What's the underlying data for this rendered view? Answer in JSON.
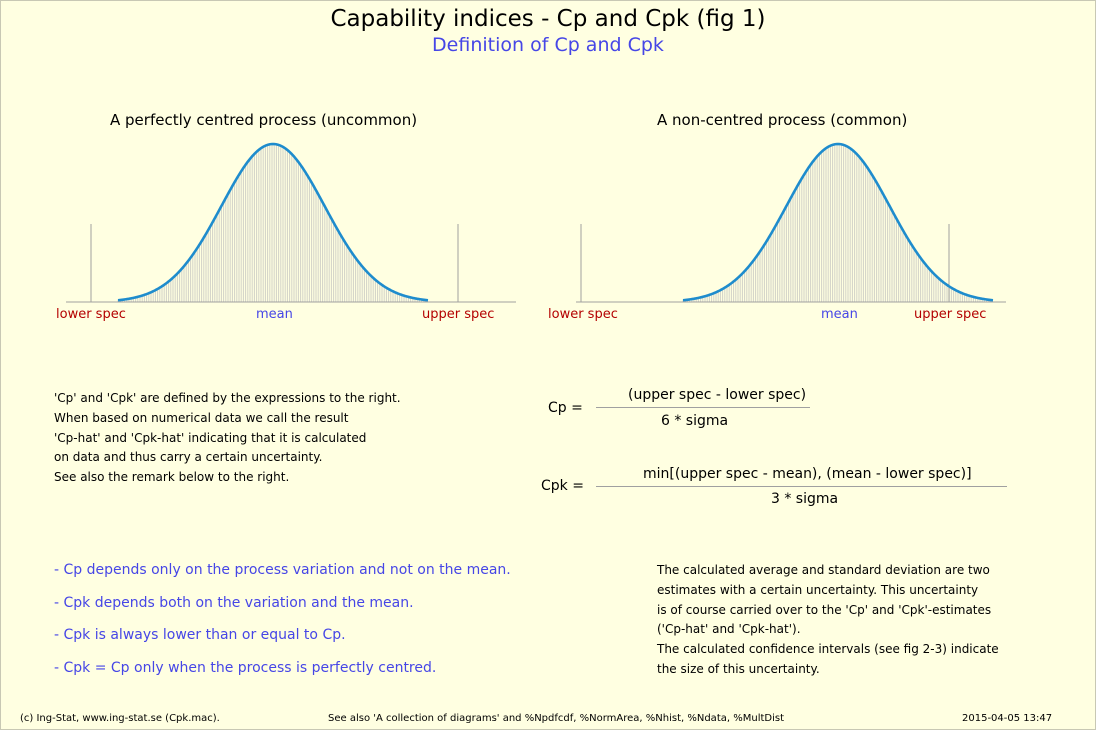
{
  "header": {
    "title": "Capability indices - Cp and Cpk (fig 1)",
    "subtitle": "Definition of Cp and Cpk"
  },
  "panels": [
    {
      "title": "A perfectly centred process (uncommon)",
      "labels": {
        "lower_spec": "lower spec",
        "mean": "mean",
        "upper_spec": "upper spec"
      }
    },
    {
      "title": "A non-centred process (common)",
      "labels": {
        "lower_spec": "lower spec",
        "mean": "mean",
        "upper_spec": "upper spec"
      }
    }
  ],
  "definition_text": [
    "'Cp' and 'Cpk' are defined by the expressions to the right.",
    "When based on numerical data we call the result",
    "'Cp-hat' and 'Cpk-hat' indicating that it is calculated",
    "on data and thus carry a certain uncertainty.",
    "See also the remark below to the right."
  ],
  "formulas": {
    "cp": {
      "lhs": "Cp =",
      "numerator": "(upper spec - lower spec)",
      "denominator": "6 * sigma"
    },
    "cpk": {
      "lhs": "Cpk =",
      "numerator": "min[(upper spec - mean), (mean - lower spec)]",
      "denominator": "3 * sigma"
    }
  },
  "bullets": [
    "- Cp depends only on the process variation and not on the mean.",
    "- Cpk depends both on the variation and the mean.",
    "- Cpk is always lower than or equal to Cp.",
    "- Cpk = Cp only when the process is perfectly centred."
  ],
  "remark_text": [
    "The calculated average and standard deviation are two",
    "estimates with a certain uncertainty. This uncertainty",
    "is of course carried over to the 'Cp' and 'Cpk'-estimates",
    "('Cp-hat' and 'Cpk-hat').",
    "The calculated confidence intervals (see fig 2-3) indicate",
    "the size of this uncertainty."
  ],
  "footer": {
    "left": "(c) Ing-Stat, www.ing-stat.se (Cpk.mac).",
    "center": "See also 'A collection of diagrams' and %Npdfcdf, %NormArea, %Nhist, %Ndata, %MultDist",
    "right": "2015-04-05 13:47"
  },
  "colors": {
    "background": "#ffffe1",
    "curve": "#1e8ccd",
    "spec_label": "#b40000",
    "mean_label": "#4646e6",
    "subtitle": "#4646e6",
    "bullet_text": "#4646e6",
    "hatch": "#d2d2c8",
    "axis": "#a0a0a0"
  }
}
